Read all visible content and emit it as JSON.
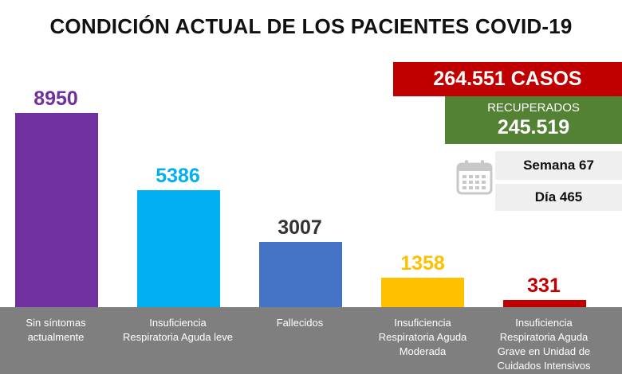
{
  "title": "CONDICIÓN ACTUAL DE LOS PACIENTES COVID-19",
  "summary": {
    "casos": "264.551 CASOS",
    "recuperados_label": "RECUPERADOS",
    "recuperados_value": "245.519",
    "semana": "Semana 67",
    "dia": "Día 465",
    "calendar_icon": "calendar-icon"
  },
  "chart_data": {
    "type": "bar",
    "title": "CONDICIÓN ACTUAL DE LOS PACIENTES COVID-19",
    "categories": [
      [
        "Sin síntomas",
        "actualmente"
      ],
      [
        "Insuficiencia",
        "Respiratoria Aguda leve"
      ],
      [
        "Fallecidos"
      ],
      [
        "Insuficiencia",
        "Respiratoria Aguda",
        "Moderada"
      ],
      [
        "Insuficiencia",
        "Respiratoria Aguda",
        "Grave en Unidad de",
        "Cuidados Intensivos"
      ]
    ],
    "values": [
      8950,
      5386,
      3007,
      1358,
      331
    ],
    "value_labels": [
      "8950",
      "5386",
      "3007",
      "1358",
      "331"
    ],
    "bar_colors": [
      "#7030a0",
      "#00b0f0",
      "#4472c4",
      "#ffc000",
      "#c00000"
    ],
    "label_colors": [
      "#7030a0",
      "#00b0f0",
      "#333333",
      "#ffc000",
      "#c00000"
    ],
    "ylim": [
      0,
      8950
    ],
    "grid": false,
    "xlabel": "",
    "ylabel": "",
    "axis_band_color": "#7f7f7f"
  }
}
